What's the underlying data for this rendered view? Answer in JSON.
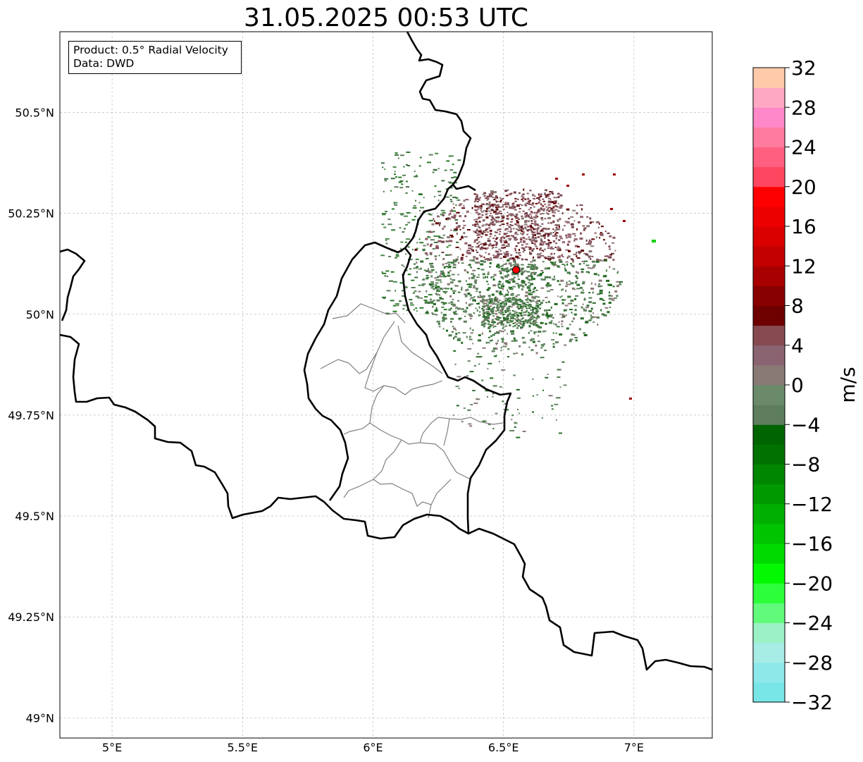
{
  "title": "31.05.2025 00:53 UTC",
  "infobox": {
    "product_label": "Product: 0.5° Radial Velocity",
    "data_label": "Data: DWD"
  },
  "map": {
    "lon_range": [
      4.8,
      7.3
    ],
    "lat_range": [
      48.95,
      50.7
    ],
    "lon_ticks": [
      {
        "value": 5.0,
        "label": "5°E"
      },
      {
        "value": 5.5,
        "label": "5.5°E"
      },
      {
        "value": 6.0,
        "label": "6°E"
      },
      {
        "value": 6.5,
        "label": "6.5°E"
      },
      {
        "value": 7.0,
        "label": "7°E"
      }
    ],
    "lat_ticks": [
      {
        "value": 50.5,
        "label": "50.5°N"
      },
      {
        "value": 50.25,
        "label": "50.25°N"
      },
      {
        "value": 50.0,
        "label": "50°N"
      },
      {
        "value": 49.75,
        "label": "49.75°N"
      },
      {
        "value": 49.5,
        "label": "49.5°N"
      },
      {
        "value": 49.25,
        "label": "49.25°N"
      },
      {
        "value": 49.0,
        "label": "49°N"
      }
    ],
    "radar_site": {
      "lon": 6.548,
      "lat": 50.11,
      "color": "#ff0000"
    },
    "border_color": "#000000",
    "admin_color": "#808080",
    "grid_color": "#b0b0b0"
  },
  "colorbar": {
    "label": "m/s",
    "min": -32,
    "max": 32,
    "ticks": [
      {
        "value": 32,
        "label": "32"
      },
      {
        "value": 28,
        "label": "28"
      },
      {
        "value": 24,
        "label": "24"
      },
      {
        "value": 20,
        "label": "20"
      },
      {
        "value": 16,
        "label": "16"
      },
      {
        "value": 12,
        "label": "12"
      },
      {
        "value": 8,
        "label": "8"
      },
      {
        "value": 4,
        "label": "4"
      },
      {
        "value": 0,
        "label": "0"
      },
      {
        "value": -4,
        "label": "−4"
      },
      {
        "value": -8,
        "label": "−8"
      },
      {
        "value": -12,
        "label": "−12"
      },
      {
        "value": -16,
        "label": "−16"
      },
      {
        "value": -20,
        "label": "−20"
      },
      {
        "value": -24,
        "label": "−24"
      },
      {
        "value": -28,
        "label": "−28"
      },
      {
        "value": -32,
        "label": "−32"
      }
    ],
    "colors": [
      "#78e6e6",
      "#8ee8ea",
      "#a8ece6",
      "#9cf2c6",
      "#62fa7a",
      "#2cff3a",
      "#02f902",
      "#00da00",
      "#00c400",
      "#00b000",
      "#009a00",
      "#008600",
      "#007200",
      "#006400",
      "#5e7e5e",
      "#6a8a6a",
      "#8a7a76",
      "#8a6470",
      "#864a50",
      "#6e0000",
      "#880000",
      "#a80000",
      "#c20000",
      "#da0000",
      "#ec0000",
      "#ff0000",
      "#ff4660",
      "#ff6080",
      "#ff7ca0",
      "#ff88c8",
      "#ffa8c4",
      "#ffcaaa"
    ]
  }
}
